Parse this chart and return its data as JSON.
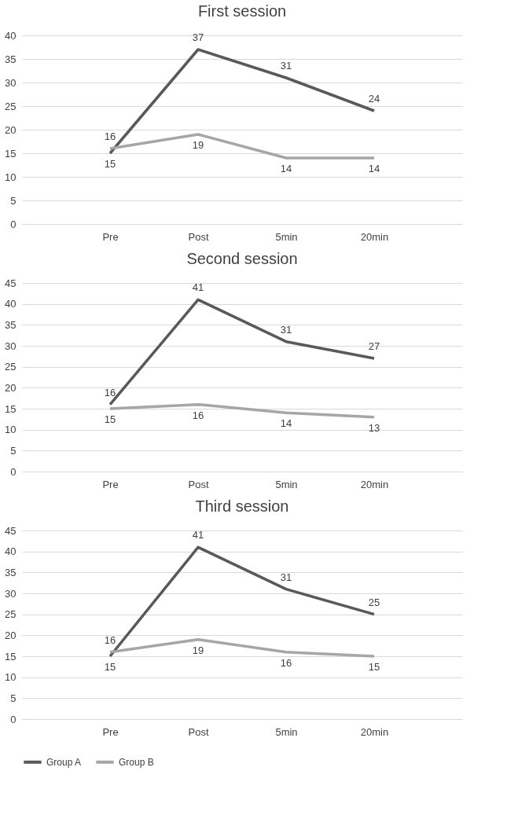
{
  "chart_data": [
    {
      "type": "line",
      "title": "First session",
      "categories": [
        "Pre",
        "Post",
        "5min",
        "20min"
      ],
      "series": [
        {
          "name": "Group A",
          "color": "#595959",
          "values": [
            15,
            37,
            31,
            24
          ]
        },
        {
          "name": "Group B",
          "color": "#a6a6a6",
          "values": [
            16,
            19,
            14,
            14
          ]
        }
      ],
      "ylim": [
        0,
        40
      ],
      "yticks": [
        0,
        5,
        10,
        15,
        20,
        25,
        30,
        35,
        40
      ],
      "grid": "y",
      "data_labels": true,
      "legend": "bottom",
      "marker": "none",
      "line_style": "solid"
    },
    {
      "type": "line",
      "title": "Second session",
      "categories": [
        "Pre",
        "Post",
        "5min",
        "20min"
      ],
      "series": [
        {
          "name": "Group A",
          "color": "#595959",
          "values": [
            16,
            41,
            31,
            27
          ]
        },
        {
          "name": "Group B",
          "color": "#a6a6a6",
          "values": [
            15,
            16,
            14,
            13
          ]
        }
      ],
      "ylim": [
        0,
        45
      ],
      "yticks": [
        0,
        5,
        10,
        15,
        20,
        25,
        30,
        35,
        40,
        45
      ],
      "grid": "y",
      "data_labels": true,
      "legend": "bottom",
      "marker": "none",
      "line_style": "solid"
    },
    {
      "type": "line",
      "title": "Third session",
      "categories": [
        "Pre",
        "Post",
        "5min",
        "20min"
      ],
      "series": [
        {
          "name": "Group A",
          "color": "#595959",
          "values": [
            15,
            41,
            31,
            25
          ]
        },
        {
          "name": "Group B",
          "color": "#a6a6a6",
          "values": [
            16,
            19,
            16,
            15
          ]
        }
      ],
      "ylim": [
        0,
        45
      ],
      "yticks": [
        0,
        5,
        10,
        15,
        20,
        25,
        30,
        35,
        40,
        45
      ],
      "grid": "y",
      "data_labels": true,
      "legend": "bottom",
      "marker": "none",
      "line_style": "solid"
    }
  ]
}
